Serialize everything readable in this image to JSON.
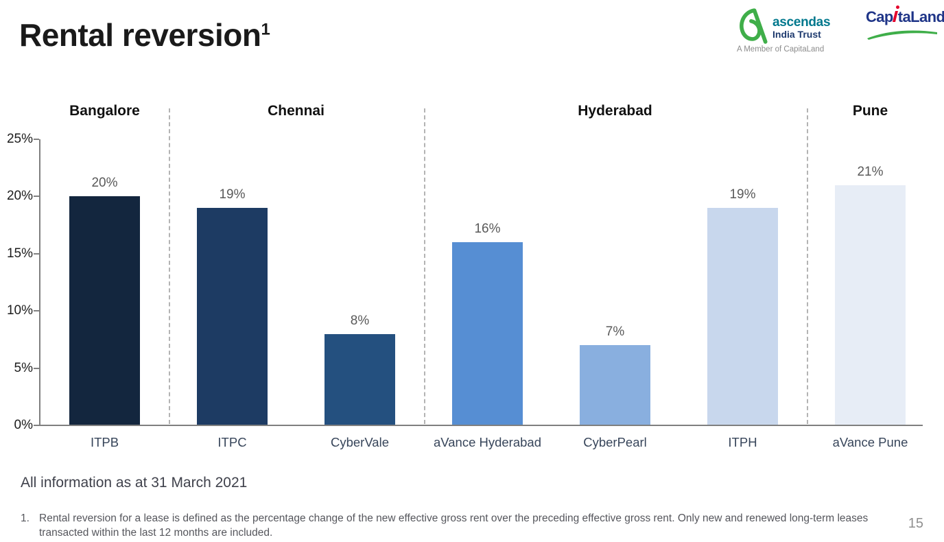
{
  "slide": {
    "title": "Rental reversion",
    "title_footnote_marker": "1",
    "as_at": "All information as at 31 March 2021",
    "footnote_number": "1.",
    "footnote_text": "Rental reversion for a lease is defined as the percentage change of the new effective gross rent over the preceding effective gross rent. Only new and renewed long-term leases transacted within the last 12 months are included.",
    "page_number": "15"
  },
  "logos": {
    "ascendas": {
      "name": "ascendas",
      "line2": "India Trust",
      "member": "A Member of CapitaLand",
      "mark_color": "#3fae49",
      "name_color": "#00788d",
      "line2_color": "#1e3a6e",
      "member_color": "#8c8c8c"
    },
    "capitaland": {
      "part1": "Cap",
      "part2": "taLand",
      "navy": "#1f3588",
      "red": "#e4002b",
      "green": "#3fae49"
    }
  },
  "chart_data": {
    "type": "bar",
    "title": "Rental reversion",
    "ylabel": "",
    "ylim": [
      0,
      25
    ],
    "grid": false,
    "yticks": [
      {
        "label": "0%",
        "value": 0
      },
      {
        "label": "5%",
        "value": 5
      },
      {
        "label": "10%",
        "value": 10
      },
      {
        "label": "15%",
        "value": 15
      },
      {
        "label": "20%",
        "value": 20
      },
      {
        "label": "25%",
        "value": 25
      }
    ],
    "groups": [
      {
        "label": "Bangalore",
        "bars": [
          {
            "label": "ITPB",
            "value": 20,
            "display": "20%",
            "color": "#13263e"
          }
        ]
      },
      {
        "label": "Chennai",
        "bars": [
          {
            "label": "ITPC",
            "value": 19,
            "display": "19%",
            "color": "#1d3b63"
          },
          {
            "label": "CyberVale",
            "value": 8,
            "display": "8%",
            "color": "#24507f"
          }
        ]
      },
      {
        "label": "Hyderabad",
        "bars": [
          {
            "label": "aVance Hyderabad",
            "value": 16,
            "display": "16%",
            "color": "#568ed3"
          },
          {
            "label": "CyberPearl",
            "value": 7,
            "display": "7%",
            "color": "#89afdf"
          },
          {
            "label": "ITPH",
            "value": 19,
            "display": "19%",
            "color": "#c8d7ed"
          }
        ]
      },
      {
        "label": "Pune",
        "bars": [
          {
            "label": "aVance Pune",
            "value": 21,
            "display": "21%",
            "color": "#e7edf6"
          }
        ]
      }
    ]
  }
}
